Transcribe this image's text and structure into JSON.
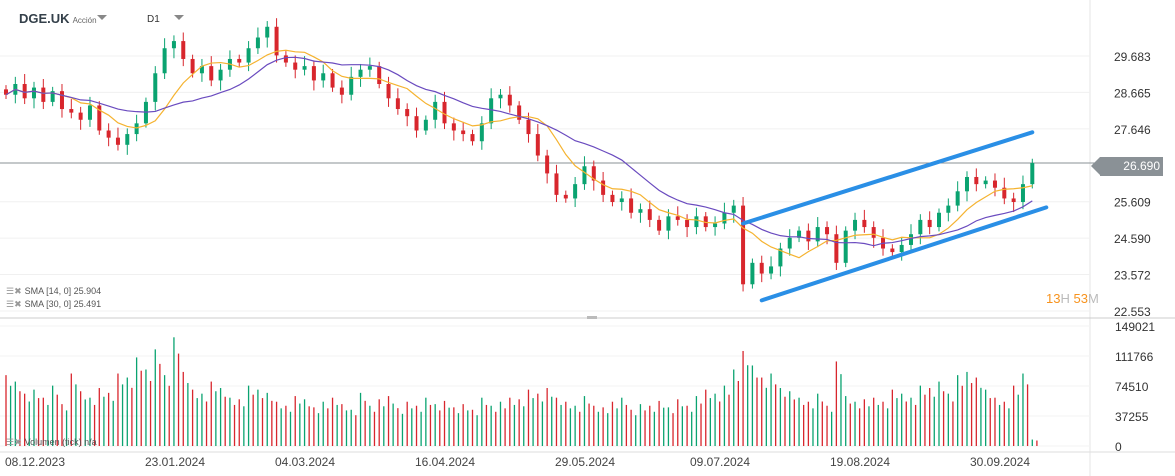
{
  "header": {
    "symbol": "DGE.UK",
    "type": "Acción",
    "timeframe": "D1"
  },
  "legend": [
    {
      "label": "SMA [14, 0] 25.904"
    },
    {
      "label": "SMA [30, 0] 25.491"
    }
  ],
  "volume_legend": "Volumen (tick) n/a",
  "current_price": "26.690",
  "countdown": {
    "hours": "13",
    "h": "H",
    "minutes": "53",
    "m": "M"
  },
  "colors": {
    "up": "#0aa370",
    "down": "#d8262d",
    "sma14": "#f5b330",
    "sma30": "#6a4bbf",
    "trend": "#2a8fe6"
  },
  "chart_data": [
    {
      "type": "candlestick",
      "title": "DGE.UK D1",
      "y_ticks": [
        "29.683",
        "28.665",
        "27.646",
        "25.609",
        "24.590",
        "23.572",
        "22.553"
      ],
      "ylim": [
        22.553,
        29.683
      ],
      "x_ticks": [
        "08.12.2023",
        "23.01.2024",
        "04.03.2024",
        "16.04.2024",
        "29.05.2024",
        "09.07.2024",
        "19.08.2024",
        "30.09.2024"
      ],
      "closes": [
        28.6,
        28.9,
        28.5,
        28.8,
        28.4,
        28.7,
        28.2,
        28.1,
        27.9,
        28.3,
        27.6,
        27.4,
        27.2,
        27.5,
        27.8,
        28.4,
        29.2,
        29.9,
        30.1,
        29.6,
        29.2,
        29.4,
        29.0,
        29.3,
        29.6,
        29.5,
        29.9,
        30.2,
        30.5,
        29.7,
        29.5,
        29.3,
        29.4,
        29.0,
        29.2,
        28.8,
        28.6,
        29.1,
        29.3,
        29.4,
        28.9,
        28.5,
        28.2,
        28.0,
        27.6,
        27.9,
        28.4,
        27.8,
        27.6,
        27.5,
        27.3,
        27.8,
        28.5,
        28.6,
        28.3,
        27.9,
        27.5,
        26.9,
        26.4,
        25.8,
        25.7,
        26.1,
        26.6,
        26.2,
        25.8,
        25.6,
        25.7,
        25.3,
        25.4,
        25.1,
        24.8,
        25.2,
        25.1,
        24.9,
        25.2,
        24.9,
        25.0,
        25.3,
        25.5,
        23.3,
        23.9,
        23.6,
        23.8,
        24.3,
        24.6,
        24.8,
        24.5,
        24.9,
        24.7,
        23.9,
        24.8,
        25.1,
        24.9,
        24.6,
        24.3,
        24.2,
        24.4,
        24.7,
        25.1,
        24.9,
        25.3,
        25.5,
        25.9,
        26.3,
        26.1,
        26.2,
        26.0,
        25.7,
        25.6,
        26.1,
        26.69
      ],
      "sma": [
        {
          "name": "SMA [14, 0]",
          "value": 25.904
        },
        {
          "name": "SMA [30, 0]",
          "value": 25.491
        }
      ],
      "trend_lines": [
        {
          "from": [
            79,
            25.0
          ],
          "to": [
            110,
            27.55
          ]
        },
        {
          "from": [
            81,
            22.85
          ],
          "to": [
            111.5,
            25.45
          ]
        }
      ]
    },
    {
      "type": "bar",
      "title": "Volumen (tick)",
      "y_ticks": [
        "149021",
        "111766",
        "74510",
        "37255",
        "0"
      ],
      "ylim": [
        0,
        149021
      ],
      "values": [
        88000,
        80000,
        65000,
        70000,
        60000,
        75000,
        52000,
        90000,
        68000,
        60000,
        72000,
        66000,
        90000,
        85000,
        110000,
        95000,
        120000,
        88000,
        135000,
        92000,
        70000,
        65000,
        80000,
        72000,
        60000,
        58000,
        75000,
        70000,
        66000,
        55000,
        50000,
        62000,
        58000,
        48000,
        55000,
        60000,
        52000,
        45000,
        66000,
        50000,
        58000,
        62000,
        47000,
        55000,
        50000,
        60000,
        52000,
        56000,
        48000,
        52000,
        45000,
        60000,
        50000,
        55000,
        60000,
        58000,
        70000,
        65000,
        72000,
        60000,
        55000,
        50000,
        62000,
        50000,
        48000,
        55000,
        60000,
        45000,
        52000,
        50000,
        56000,
        48000,
        58000,
        50000,
        62000,
        70000,
        65000,
        75000,
        95000,
        118000,
        100000,
        85000,
        90000,
        72000,
        68000,
        60000,
        55000,
        65000,
        50000,
        105000,
        62000,
        55000,
        58000,
        60000,
        55000,
        70000,
        65000,
        60000,
        75000,
        72000,
        80000,
        65000,
        88000,
        92000,
        85000,
        70000,
        60000,
        55000,
        75000,
        90000,
        8000
      ]
    }
  ]
}
